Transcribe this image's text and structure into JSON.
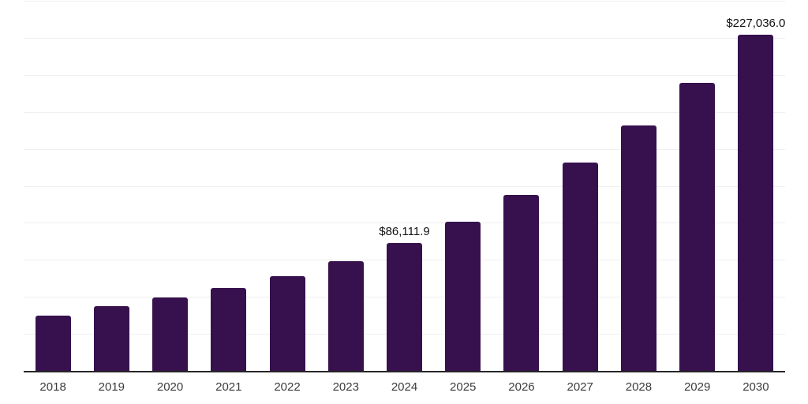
{
  "chart_data": {
    "type": "bar",
    "title": "",
    "xlabel": "",
    "ylabel": "",
    "categories": [
      "2018",
      "2019",
      "2020",
      "2021",
      "2022",
      "2023",
      "2024",
      "2025",
      "2026",
      "2027",
      "2028",
      "2029",
      "2030"
    ],
    "values": [
      37300,
      43900,
      49700,
      56200,
      63900,
      74000,
      86111.9,
      100700,
      118900,
      140700,
      165800,
      194400,
      227036.0
    ],
    "data_labels": {
      "2024": "$86,111.9",
      "2030": "$227,036.0"
    },
    "ylim": [
      0,
      250000
    ],
    "grid": {
      "visible": true,
      "step": 25000,
      "color": "#efefef"
    },
    "legend_position": "none",
    "bar_color": "#36114E",
    "axis_line_color": "#262626",
    "label_color": "#111111",
    "tick_label_color": "#3c3c3c"
  }
}
